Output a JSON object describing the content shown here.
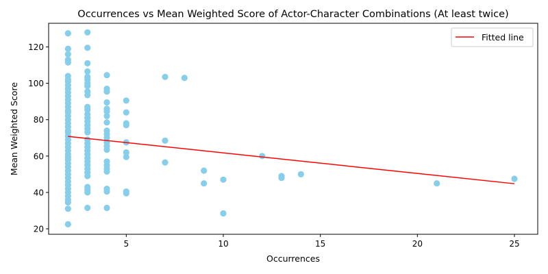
{
  "chart_data": {
    "type": "scatter",
    "title": "Occurrences vs Mean Weighted Score of Actor-Character Combinations (At least twice)",
    "xlabel": "Occurrences",
    "ylabel": "Mean Weighted Score",
    "xlim": [
      1.0,
      26.2
    ],
    "ylim": [
      17,
      133
    ],
    "xticks": [
      5,
      10,
      15,
      20,
      25
    ],
    "yticks": [
      20,
      40,
      60,
      80,
      100,
      120
    ],
    "grid": false,
    "legend_position": "upper right",
    "point_color": "#87CEEB",
    "line_color": "#FF0000",
    "series": [
      {
        "kind": "points",
        "points": [
          [
            2,
            127.5
          ],
          [
            2,
            119
          ],
          [
            2,
            116
          ],
          [
            2,
            113
          ],
          [
            2,
            111.5
          ],
          [
            2,
            104
          ],
          [
            2,
            102
          ],
          [
            2,
            101
          ],
          [
            2,
            99
          ],
          [
            2,
            97
          ],
          [
            2,
            95
          ],
          [
            2,
            93
          ],
          [
            2,
            91
          ],
          [
            2,
            89
          ],
          [
            2,
            87
          ],
          [
            2,
            85
          ],
          [
            2,
            84
          ],
          [
            2,
            82
          ],
          [
            2,
            80
          ],
          [
            2,
            78
          ],
          [
            2,
            76
          ],
          [
            2,
            74
          ],
          [
            2,
            73
          ],
          [
            2,
            71
          ],
          [
            2,
            69
          ],
          [
            2,
            67
          ],
          [
            2,
            65
          ],
          [
            2,
            63
          ],
          [
            2,
            61
          ],
          [
            2,
            59.5
          ],
          [
            2,
            58
          ],
          [
            2,
            56
          ],
          [
            2,
            54
          ],
          [
            2,
            52
          ],
          [
            2,
            50
          ],
          [
            2,
            48
          ],
          [
            2,
            46
          ],
          [
            2,
            44
          ],
          [
            2,
            42
          ],
          [
            2,
            40
          ],
          [
            2,
            38
          ],
          [
            2,
            36
          ],
          [
            2,
            34.5
          ],
          [
            2,
            31
          ],
          [
            2,
            22.5
          ],
          [
            3,
            128
          ],
          [
            3,
            119.5
          ],
          [
            3,
            111
          ],
          [
            3,
            106.5
          ],
          [
            3,
            103.5
          ],
          [
            3,
            102
          ],
          [
            3,
            100
          ],
          [
            3,
            98.5
          ],
          [
            3,
            95.5
          ],
          [
            3,
            93.5
          ],
          [
            3,
            87
          ],
          [
            3,
            85.5
          ],
          [
            3,
            83
          ],
          [
            3,
            81
          ],
          [
            3,
            79
          ],
          [
            3,
            77
          ],
          [
            3,
            75
          ],
          [
            3,
            73
          ],
          [
            3,
            69
          ],
          [
            3,
            67
          ],
          [
            3,
            65
          ],
          [
            3,
            63
          ],
          [
            3,
            61
          ],
          [
            3,
            59
          ],
          [
            3,
            57
          ],
          [
            3,
            55
          ],
          [
            3,
            53
          ],
          [
            3,
            51
          ],
          [
            3,
            49
          ],
          [
            3,
            43
          ],
          [
            3,
            41.5
          ],
          [
            3,
            40
          ],
          [
            3,
            31.5
          ],
          [
            4,
            104.5
          ],
          [
            4,
            97
          ],
          [
            4,
            95.5
          ],
          [
            4,
            89.5
          ],
          [
            4,
            86
          ],
          [
            4,
            84.5
          ],
          [
            4,
            82
          ],
          [
            4,
            78.5
          ],
          [
            4,
            74
          ],
          [
            4,
            72
          ],
          [
            4,
            70
          ],
          [
            4,
            67.5
          ],
          [
            4,
            65.5
          ],
          [
            4,
            63.5
          ],
          [
            4,
            57
          ],
          [
            4,
            55
          ],
          [
            4,
            53
          ],
          [
            4,
            51.5
          ],
          [
            4,
            42
          ],
          [
            4,
            40.5
          ],
          [
            4,
            31.5
          ],
          [
            5,
            90.5
          ],
          [
            5,
            84
          ],
          [
            5,
            78
          ],
          [
            5,
            77
          ],
          [
            5,
            67.5
          ],
          [
            5,
            62
          ],
          [
            5,
            59.5
          ],
          [
            5,
            40.5
          ],
          [
            5,
            39.5
          ],
          [
            7,
            103.5
          ],
          [
            7,
            68.5
          ],
          [
            7,
            56.5
          ],
          [
            8,
            103
          ],
          [
            9,
            52
          ],
          [
            9,
            45
          ],
          [
            10,
            47
          ],
          [
            10,
            28.5
          ],
          [
            12,
            60
          ],
          [
            13,
            49
          ],
          [
            13,
            48
          ],
          [
            14,
            50
          ],
          [
            21,
            45
          ],
          [
            25,
            47.5
          ]
        ]
      },
      {
        "kind": "line",
        "name": "Fitted line",
        "points": [
          [
            2,
            70.8
          ],
          [
            25,
            44.8
          ]
        ]
      }
    ]
  }
}
